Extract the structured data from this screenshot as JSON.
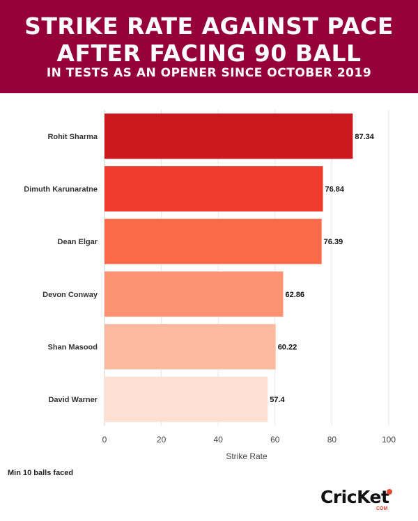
{
  "header": {
    "title_line1": "STRIKE RATE AGAINST PACE",
    "title_line2": "AFTER FACING 90 BALL",
    "subtitle": "IN TESTS AS AN OPENER SINCE OCTOBER 2019",
    "background": "#96003a"
  },
  "chart_data": {
    "type": "bar",
    "orientation": "horizontal",
    "categories": [
      "Rohit Sharma",
      "Dimuth Karunaratne",
      "Dean Elgar",
      "Devon Conway",
      "Shan Masood",
      "David Warner"
    ],
    "values": [
      87.34,
      76.84,
      76.39,
      62.86,
      60.22,
      57.4
    ],
    "value_labels": [
      "87.34",
      "76.84",
      "76.39",
      "62.86",
      "60.22",
      "57.4"
    ],
    "colors": [
      "#cb181d",
      "#ef3b2c",
      "#fb6a4a",
      "#fc9272",
      "#fcbba1",
      "#fee0d2"
    ],
    "xlabel": "Strike Rate",
    "ylabel": "",
    "xlim": [
      0,
      100
    ],
    "xticks": [
      0,
      20,
      40,
      60,
      80,
      100
    ],
    "grid": true
  },
  "footnote": "Min 10 balls faced",
  "logo": {
    "text": "CricKet",
    "sub": "COM"
  }
}
